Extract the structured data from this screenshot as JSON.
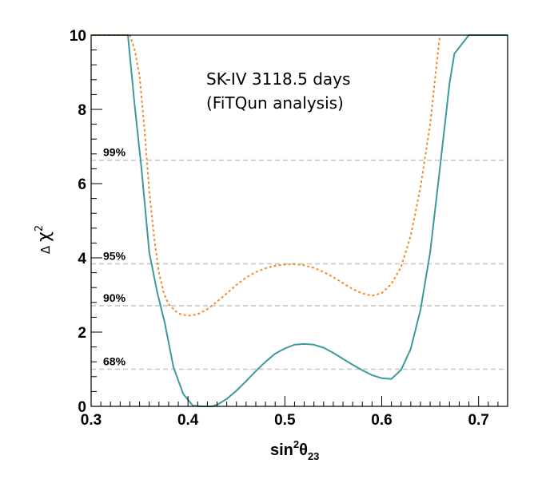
{
  "chart_data": {
    "type": "line",
    "annotation": [
      "SK-IV 3118.5 days",
      "(FiTQun analysis)"
    ],
    "xlabel": {
      "main": "sin",
      "sup": "2",
      "theta": "θ",
      "sub": "23"
    },
    "ylabel": {
      "delta": "Δ",
      "chi": "χ",
      "sup": "2"
    },
    "xlim": [
      0.3,
      0.73
    ],
    "ylim": [
      0,
      10
    ],
    "xticks": [
      {
        "value": 0.3,
        "label": "0.3"
      },
      {
        "value": 0.4,
        "label": "0.4"
      },
      {
        "value": 0.5,
        "label": "0.5"
      },
      {
        "value": 0.6,
        "label": "0.6"
      },
      {
        "value": 0.7,
        "label": "0.7"
      }
    ],
    "yticks": [
      {
        "value": 0,
        "label": "0"
      },
      {
        "value": 2,
        "label": "2"
      },
      {
        "value": 4,
        "label": "4"
      },
      {
        "value": 6,
        "label": "6"
      },
      {
        "value": 8,
        "label": "8"
      },
      {
        "value": 10,
        "label": "10"
      }
    ],
    "grid": false,
    "confidence_levels": [
      {
        "label": "99%",
        "value": 6.63
      },
      {
        "label": "95%",
        "value": 3.84
      },
      {
        "label": "90%",
        "value": 2.71
      },
      {
        "label": "68%",
        "value": 1.0
      }
    ],
    "series": [
      {
        "style": "solid",
        "color": "#3d9a9a",
        "x": [
          0.3,
          0.338,
          0.345,
          0.352,
          0.36,
          0.368,
          0.376,
          0.385,
          0.395,
          0.405,
          0.413,
          0.42,
          0.425,
          0.43,
          0.44,
          0.45,
          0.46,
          0.47,
          0.48,
          0.49,
          0.5,
          0.51,
          0.52,
          0.53,
          0.54,
          0.55,
          0.56,
          0.57,
          0.58,
          0.59,
          0.6,
          0.61,
          0.62,
          0.63,
          0.64,
          0.65,
          0.66,
          0.67,
          0.675,
          0.69,
          0.73
        ],
        "y": [
          10.0,
          10.0,
          8.1,
          6.4,
          4.15,
          3.1,
          2.25,
          1.05,
          0.34,
          0.02,
          0.0,
          0.0,
          0.0,
          0.04,
          0.2,
          0.42,
          0.68,
          0.95,
          1.2,
          1.42,
          1.56,
          1.66,
          1.68,
          1.66,
          1.58,
          1.44,
          1.28,
          1.12,
          0.97,
          0.84,
          0.76,
          0.74,
          0.98,
          1.55,
          2.6,
          4.15,
          6.4,
          8.7,
          9.5,
          10.0,
          10.0
        ]
      },
      {
        "style": "dashed",
        "color": "#ee8c2e",
        "x": [
          0.3,
          0.34,
          0.345,
          0.35,
          0.355,
          0.36,
          0.365,
          0.37,
          0.375,
          0.38,
          0.39,
          0.4,
          0.41,
          0.42,
          0.43,
          0.44,
          0.45,
          0.46,
          0.47,
          0.48,
          0.49,
          0.5,
          0.51,
          0.52,
          0.53,
          0.54,
          0.55,
          0.56,
          0.57,
          0.58,
          0.59,
          0.6,
          0.61,
          0.62,
          0.63,
          0.64,
          0.65,
          0.655,
          0.66
        ],
        "y": [
          10.0,
          10.0,
          9.6,
          8.9,
          7.5,
          5.8,
          4.55,
          3.6,
          3.05,
          2.75,
          2.5,
          2.44,
          2.48,
          2.62,
          2.82,
          3.04,
          3.27,
          3.47,
          3.62,
          3.72,
          3.79,
          3.82,
          3.83,
          3.8,
          3.73,
          3.62,
          3.48,
          3.32,
          3.16,
          3.04,
          2.98,
          3.05,
          3.3,
          3.75,
          4.6,
          5.9,
          7.6,
          8.8,
          10.0
        ]
      }
    ]
  }
}
